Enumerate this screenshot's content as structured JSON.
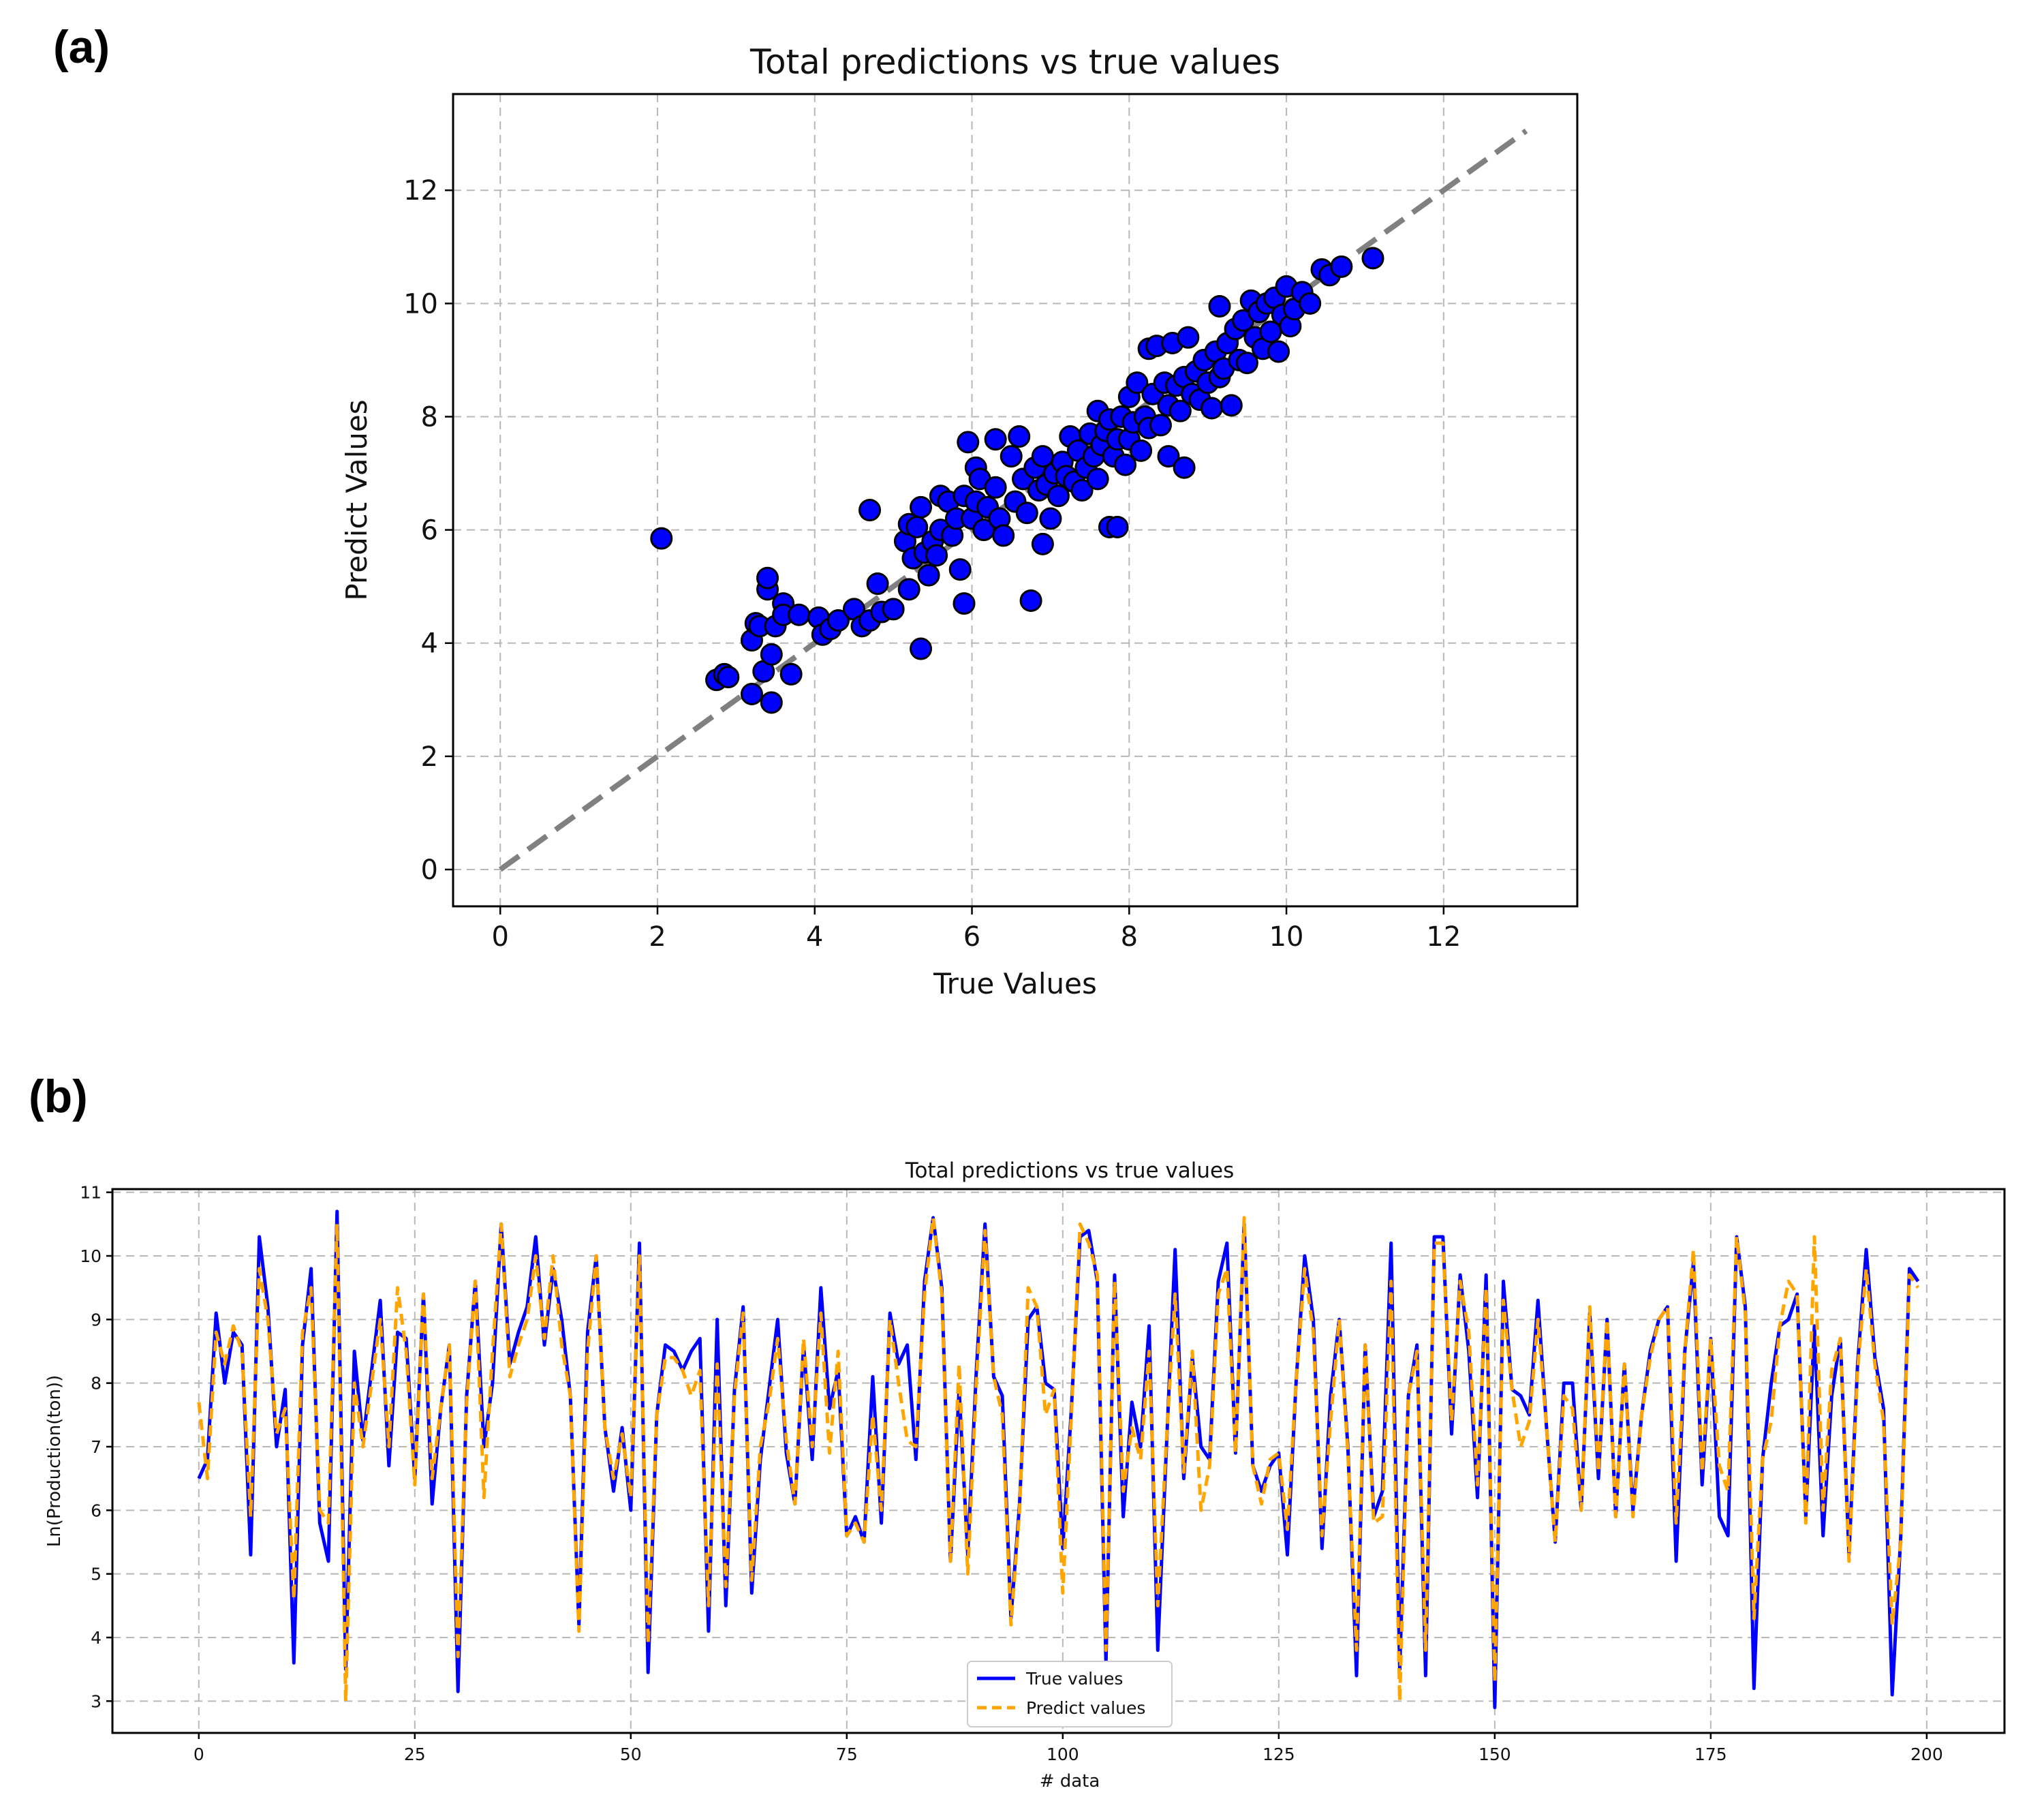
{
  "panels": {
    "a": "(a)",
    "b": "(b)"
  },
  "chart_data": [
    {
      "type": "scatter",
      "title": "Total predictions vs true values",
      "xlabel": "True Values",
      "ylabel": "Predict Values",
      "xlim": [
        -0.6,
        13.7
      ],
      "ylim": [
        -0.65,
        13.7
      ],
      "xticks": [
        0,
        2,
        4,
        6,
        8,
        10,
        12
      ],
      "yticks": [
        0,
        2,
        4,
        6,
        8,
        10,
        12
      ],
      "grid": true,
      "marker_color": "#0000ff",
      "reference_line": {
        "from": [
          0,
          0
        ],
        "to": [
          13.05,
          13.05
        ],
        "color": "#808080",
        "style": "dashed"
      },
      "points": [
        [
          2.05,
          5.85
        ],
        [
          2.75,
          3.35
        ],
        [
          2.85,
          3.45
        ],
        [
          2.9,
          3.4
        ],
        [
          3.2,
          3.1
        ],
        [
          3.2,
          4.05
        ],
        [
          3.25,
          4.35
        ],
        [
          3.3,
          4.3
        ],
        [
          3.35,
          3.5
        ],
        [
          3.4,
          4.95
        ],
        [
          3.4,
          5.15
        ],
        [
          3.45,
          3.8
        ],
        [
          3.45,
          2.95
        ],
        [
          3.5,
          4.3
        ],
        [
          3.6,
          4.7
        ],
        [
          3.6,
          4.5
        ],
        [
          3.7,
          3.45
        ],
        [
          3.8,
          4.5
        ],
        [
          4.05,
          4.45
        ],
        [
          4.1,
          4.15
        ],
        [
          4.2,
          4.25
        ],
        [
          4.3,
          4.4
        ],
        [
          4.5,
          4.6
        ],
        [
          4.6,
          4.3
        ],
        [
          4.7,
          4.4
        ],
        [
          4.7,
          6.35
        ],
        [
          4.8,
          5.05
        ],
        [
          4.85,
          4.55
        ],
        [
          5.0,
          4.6
        ],
        [
          5.15,
          5.8
        ],
        [
          5.2,
          4.95
        ],
        [
          5.2,
          6.1
        ],
        [
          5.25,
          5.5
        ],
        [
          5.3,
          6.05
        ],
        [
          5.35,
          3.9
        ],
        [
          5.35,
          6.4
        ],
        [
          5.4,
          5.6
        ],
        [
          5.45,
          5.2
        ],
        [
          5.5,
          5.8
        ],
        [
          5.55,
          5.55
        ],
        [
          5.6,
          6.0
        ],
        [
          5.6,
          6.6
        ],
        [
          5.7,
          6.5
        ],
        [
          5.75,
          5.9
        ],
        [
          5.8,
          6.2
        ],
        [
          5.85,
          5.3
        ],
        [
          5.9,
          6.6
        ],
        [
          5.9,
          4.7
        ],
        [
          5.95,
          7.55
        ],
        [
          6.0,
          6.2
        ],
        [
          6.05,
          6.5
        ],
        [
          6.05,
          7.1
        ],
        [
          6.1,
          6.9
        ],
        [
          6.15,
          6.0
        ],
        [
          6.2,
          6.4
        ],
        [
          6.3,
          6.75
        ],
        [
          6.3,
          7.6
        ],
        [
          6.35,
          6.2
        ],
        [
          6.4,
          5.9
        ],
        [
          6.5,
          7.3
        ],
        [
          6.55,
          6.5
        ],
        [
          6.6,
          7.65
        ],
        [
          6.65,
          6.9
        ],
        [
          6.7,
          6.3
        ],
        [
          6.75,
          4.75
        ],
        [
          6.8,
          7.1
        ],
        [
          6.85,
          6.7
        ],
        [
          6.9,
          7.3
        ],
        [
          6.9,
          5.75
        ],
        [
          6.95,
          6.8
        ],
        [
          7.0,
          6.2
        ],
        [
          7.05,
          7.0
        ],
        [
          7.1,
          6.6
        ],
        [
          7.15,
          7.2
        ],
        [
          7.2,
          6.95
        ],
        [
          7.25,
          7.65
        ],
        [
          7.3,
          6.85
        ],
        [
          7.35,
          7.4
        ],
        [
          7.4,
          6.7
        ],
        [
          7.45,
          7.1
        ],
        [
          7.5,
          7.7
        ],
        [
          7.55,
          7.3
        ],
        [
          7.6,
          6.9
        ],
        [
          7.6,
          8.1
        ],
        [
          7.65,
          7.5
        ],
        [
          7.7,
          7.75
        ],
        [
          7.75,
          6.05
        ],
        [
          7.75,
          7.95
        ],
        [
          7.8,
          7.3
        ],
        [
          7.85,
          6.05
        ],
        [
          7.85,
          7.6
        ],
        [
          7.9,
          8.0
        ],
        [
          7.95,
          7.15
        ],
        [
          8.0,
          7.6
        ],
        [
          8.0,
          8.35
        ],
        [
          8.05,
          7.9
        ],
        [
          8.1,
          8.6
        ],
        [
          8.15,
          7.4
        ],
        [
          8.2,
          8.0
        ],
        [
          8.25,
          9.2
        ],
        [
          8.25,
          7.8
        ],
        [
          8.3,
          8.4
        ],
        [
          8.35,
          9.25
        ],
        [
          8.4,
          7.85
        ],
        [
          8.45,
          8.6
        ],
        [
          8.5,
          7.3
        ],
        [
          8.5,
          8.2
        ],
        [
          8.55,
          9.3
        ],
        [
          8.6,
          8.55
        ],
        [
          8.65,
          8.1
        ],
        [
          8.7,
          7.1
        ],
        [
          8.7,
          8.7
        ],
        [
          8.75,
          9.4
        ],
        [
          8.8,
          8.4
        ],
        [
          8.85,
          8.8
        ],
        [
          8.9,
          8.3
        ],
        [
          8.95,
          9.0
        ],
        [
          9.0,
          8.6
        ],
        [
          9.05,
          8.15
        ],
        [
          9.1,
          9.15
        ],
        [
          9.15,
          9.95
        ],
        [
          9.15,
          8.7
        ],
        [
          9.2,
          8.85
        ],
        [
          9.25,
          9.3
        ],
        [
          9.3,
          8.2
        ],
        [
          9.35,
          9.55
        ],
        [
          9.4,
          9.0
        ],
        [
          9.45,
          9.7
        ],
        [
          9.5,
          8.95
        ],
        [
          9.55,
          10.05
        ],
        [
          9.6,
          9.4
        ],
        [
          9.65,
          9.85
        ],
        [
          9.7,
          9.2
        ],
        [
          9.75,
          10.0
        ],
        [
          9.8,
          9.5
        ],
        [
          9.85,
          10.1
        ],
        [
          9.9,
          9.15
        ],
        [
          9.95,
          9.8
        ],
        [
          10.0,
          10.3
        ],
        [
          10.05,
          9.6
        ],
        [
          10.1,
          9.9
        ],
        [
          10.2,
          10.2
        ],
        [
          10.3,
          10.0
        ],
        [
          10.45,
          10.6
        ],
        [
          10.55,
          10.5
        ],
        [
          10.7,
          10.65
        ],
        [
          11.1,
          10.8
        ]
      ]
    },
    {
      "type": "line",
      "title": "Total predictions vs true values",
      "xlabel": "# data",
      "ylabel": "Ln(Production(ton))",
      "xlim": [
        -10,
        209
      ],
      "ylim": [
        2.5,
        11.05
      ],
      "xticks": [
        0,
        25,
        50,
        75,
        100,
        125,
        150,
        175,
        200
      ],
      "yticks": [
        3,
        4,
        5,
        6,
        7,
        8,
        9,
        10,
        11
      ],
      "grid": true,
      "legend": "lower-center",
      "series": [
        {
          "name": "True values",
          "color": "#0000ff",
          "style": "solid",
          "values": [
            6.5,
            6.8,
            9.1,
            8.0,
            8.8,
            8.6,
            5.3,
            10.3,
            9.2,
            7.0,
            7.9,
            3.6,
            8.6,
            9.8,
            5.8,
            5.2,
            10.7,
            3.5,
            8.5,
            7.1,
            8.2,
            9.3,
            6.7,
            8.8,
            8.7,
            6.5,
            9.4,
            6.1,
            7.6,
            8.6,
            3.15,
            7.8,
            9.6,
            7.0,
            8.0,
            10.5,
            8.3,
            8.8,
            9.2,
            10.3,
            8.6,
            9.8,
            9.0,
            7.8,
            4.2,
            8.8,
            10.0,
            7.3,
            6.3,
            7.3,
            6.0,
            10.2,
            3.45,
            7.5,
            8.6,
            8.5,
            8.2,
            8.5,
            8.7,
            4.1,
            9.0,
            4.5,
            7.9,
            9.2,
            4.7,
            6.8,
            7.9,
            9.0,
            6.9,
            6.1,
            8.6,
            6.8,
            9.5,
            7.6,
            8.2,
            5.6,
            5.9,
            5.5,
            8.1,
            5.8,
            9.1,
            8.3,
            8.6,
            6.8,
            9.6,
            10.6,
            9.5,
            5.2,
            7.9,
            5.3,
            8.2,
            10.5,
            8.1,
            7.8,
            4.3,
            6.1,
            9.0,
            9.2,
            8.0,
            7.9,
            5.4,
            7.6,
            10.3,
            10.4,
            9.6,
            3.6,
            9.7,
            5.9,
            7.7,
            7.0,
            8.9,
            3.8,
            7.0,
            10.1,
            6.5,
            8.4,
            7.0,
            6.8,
            9.6,
            10.2,
            6.9,
            10.5,
            6.7,
            6.3,
            6.7,
            6.9,
            5.3,
            8.0,
            10.0,
            9.0,
            5.4,
            7.8,
            9.0,
            7.0,
            3.4,
            8.6,
            5.9,
            6.3,
            10.2,
            3.5,
            7.8,
            8.6,
            3.4,
            10.3,
            10.3,
            7.2,
            9.7,
            8.5,
            6.2,
            9.7,
            2.9,
            9.6,
            7.9,
            7.8,
            7.5,
            9.3,
            7.3,
            5.5,
            8.0,
            8.0,
            6.0,
            9.1,
            6.5,
            9.0,
            5.9,
            8.3,
            6.0,
            7.5,
            8.5,
            9.0,
            9.2,
            5.2,
            8.5,
            9.9,
            6.4,
            8.7,
            5.9,
            5.6,
            10.3,
            9.2,
            3.2,
            6.8,
            8.0,
            8.9,
            9.0,
            9.4,
            5.9,
            8.9,
            5.6,
            7.8,
            8.7,
            5.3,
            8.3,
            10.1,
            8.4,
            7.6,
            3.1,
            5.6,
            9.8,
            9.6
          ]
        },
        {
          "name": "Predict values",
          "color": "#ffa500",
          "style": "dashed",
          "values": [
            7.7,
            6.5,
            8.8,
            8.3,
            8.9,
            8.5,
            5.9,
            9.8,
            9.0,
            7.2,
            7.6,
            4.6,
            8.8,
            9.5,
            6.0,
            5.8,
            10.5,
            3.0,
            8.0,
            7.0,
            8.0,
            9.0,
            7.0,
            9.5,
            8.5,
            6.4,
            9.4,
            6.5,
            7.6,
            8.6,
            3.7,
            7.7,
            9.6,
            6.2,
            8.5,
            10.5,
            8.1,
            8.6,
            9.0,
            10.0,
            8.7,
            10.0,
            8.6,
            7.8,
            4.1,
            8.5,
            10.0,
            7.3,
            6.5,
            7.2,
            6.2,
            10.0,
            3.9,
            7.5,
            8.4,
            8.4,
            8.2,
            7.8,
            8.2,
            4.5,
            8.3,
            4.8,
            7.8,
            9.1,
            4.9,
            7.0,
            7.7,
            8.7,
            7.1,
            6.1,
            8.7,
            7.0,
            9.1,
            6.9,
            8.5,
            5.6,
            5.8,
            5.5,
            7.5,
            6.0,
            9.0,
            8.0,
            7.1,
            7.0,
            9.4,
            10.6,
            9.4,
            5.2,
            8.3,
            5.0,
            8.0,
            10.4,
            8.1,
            7.5,
            4.2,
            6.0,
            9.5,
            9.2,
            7.5,
            7.9,
            4.7,
            7.5,
            10.5,
            10.2,
            9.7,
            3.8,
            9.6,
            6.3,
            7.3,
            6.8,
            8.5,
            4.5,
            7.1,
            9.4,
            6.6,
            8.5,
            6.0,
            6.7,
            9.4,
            9.8,
            6.9,
            10.6,
            6.7,
            6.1,
            6.8,
            6.9,
            5.7,
            8.0,
            9.8,
            8.8,
            5.6,
            7.4,
            9.0,
            6.9,
            3.8,
            8.6,
            5.8,
            5.9,
            9.6,
            3.0,
            7.8,
            8.5,
            3.8,
            10.2,
            10.2,
            7.4,
            9.6,
            8.8,
            6.4,
            9.5,
            3.3,
            9.3,
            7.9,
            7.0,
            7.4,
            9.0,
            7.3,
            5.5,
            7.8,
            7.6,
            6.0,
            9.2,
            6.6,
            9.0,
            5.9,
            8.3,
            5.9,
            7.5,
            8.4,
            9.0,
            9.2,
            5.8,
            8.5,
            10.1,
            6.6,
            8.7,
            6.7,
            6.3,
            10.3,
            9.1,
            4.3,
            6.8,
            7.4,
            8.9,
            9.6,
            9.4,
            5.8,
            10.3,
            6.0,
            8.2,
            8.7,
            5.2,
            8.2,
            9.8,
            8.3,
            7.4,
            4.2,
            5.5,
            9.7,
            9.5
          ]
        }
      ]
    }
  ]
}
